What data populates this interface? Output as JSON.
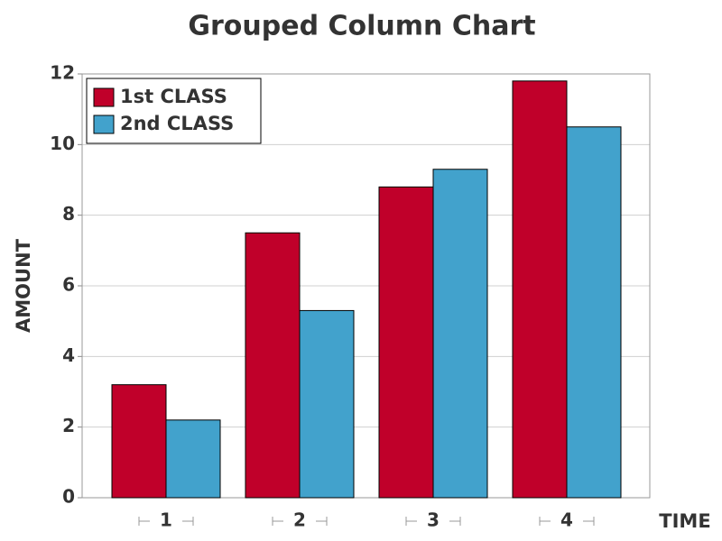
{
  "chart_data": {
    "type": "bar",
    "title": "Grouped Column Chart",
    "x_label": "TIME",
    "y_label": "AMOUNT",
    "categories": [
      "1",
      "2",
      "3",
      "4"
    ],
    "series": [
      {
        "name": "1st CLASS",
        "color": "#c0002a",
        "values": [
          3.2,
          7.5,
          8.8,
          11.8
        ]
      },
      {
        "name": "2nd CLASS",
        "color": "#42a2cc",
        "values": [
          2.2,
          5.3,
          9.3,
          10.5
        ]
      }
    ],
    "ylim": [
      0,
      12
    ],
    "yticks": [
      0,
      2,
      4,
      6,
      8,
      10,
      12
    ],
    "grid": true,
    "legend": "top-left"
  }
}
